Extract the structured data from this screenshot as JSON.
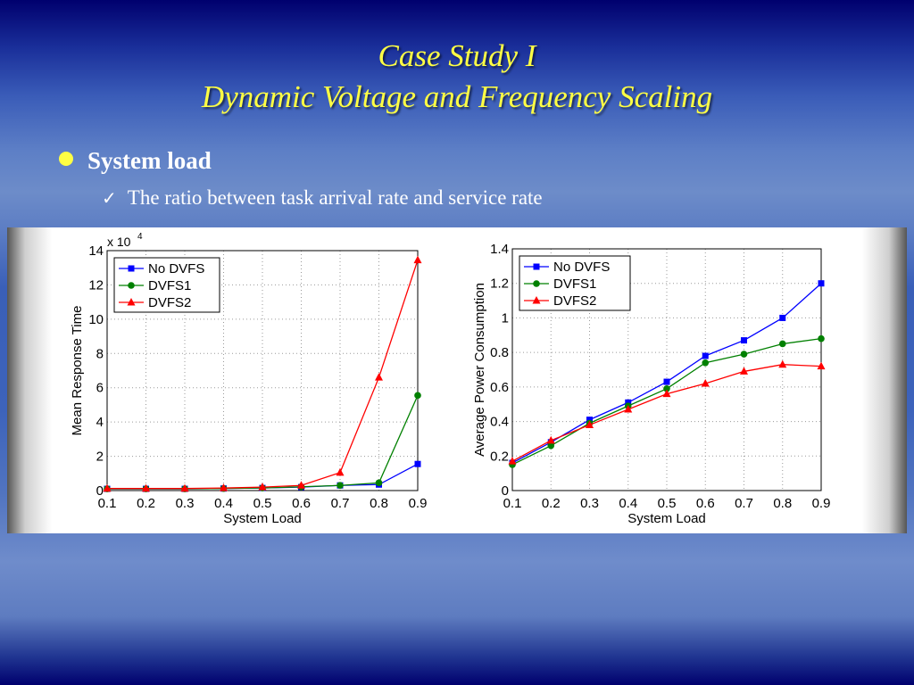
{
  "slide": {
    "title_line1": "Case Study I",
    "title_line2": "Dynamic Voltage and Frequency Scaling",
    "bullet": "System load",
    "subbullet": "The ratio between task arrival rate and service rate"
  },
  "colors": {
    "title": "#ffff44",
    "no_dvfs": "#0000ff",
    "dvfs1": "#008000",
    "dvfs2": "#ff0000"
  },
  "chart_data": [
    {
      "type": "line",
      "xlabel": "System Load",
      "ylabel": "Mean Response Time",
      "y_exponent": "x 10",
      "y_exponent_power": "4",
      "x": [
        0.1,
        0.2,
        0.3,
        0.4,
        0.5,
        0.6,
        0.7,
        0.8,
        0.9
      ],
      "xlim": [
        0.1,
        0.9
      ],
      "ylim": [
        0,
        14
      ],
      "xticks": [
        "0.1",
        "0.2",
        "0.3",
        "0.4",
        "0.5",
        "0.6",
        "0.7",
        "0.8",
        "0.9"
      ],
      "yticks": [
        "0",
        "2",
        "4",
        "6",
        "8",
        "10",
        "12",
        "14"
      ],
      "grid": true,
      "legend": "top-left",
      "series": [
        {
          "name": "No DVFS",
          "color": "#0000ff",
          "marker": "square",
          "values": [
            0.1,
            0.1,
            0.1,
            0.12,
            0.15,
            0.2,
            0.3,
            0.35,
            1.55
          ]
        },
        {
          "name": "DVFS1",
          "color": "#008000",
          "marker": "circle",
          "values": [
            0.1,
            0.1,
            0.1,
            0.12,
            0.15,
            0.22,
            0.3,
            0.45,
            5.55
          ]
        },
        {
          "name": "DVFS2",
          "color": "#ff0000",
          "marker": "triangle",
          "values": [
            0.12,
            0.12,
            0.12,
            0.15,
            0.2,
            0.3,
            1.05,
            6.6,
            13.45
          ]
        }
      ]
    },
    {
      "type": "line",
      "xlabel": "System Load",
      "ylabel": "Average Power Consumption",
      "x": [
        0.1,
        0.2,
        0.3,
        0.4,
        0.5,
        0.6,
        0.7,
        0.8,
        0.9
      ],
      "xlim": [
        0.1,
        0.9
      ],
      "ylim": [
        0,
        1.4
      ],
      "xticks": [
        "0.1",
        "0.2",
        "0.3",
        "0.4",
        "0.5",
        "0.6",
        "0.7",
        "0.8",
        "0.9"
      ],
      "yticks": [
        "0",
        "0.2",
        "0.4",
        "0.6",
        "0.8",
        "1",
        "1.2",
        "1.4"
      ],
      "grid": true,
      "legend": "top-left",
      "series": [
        {
          "name": "No DVFS",
          "color": "#0000ff",
          "marker": "square",
          "values": [
            0.16,
            0.28,
            0.41,
            0.51,
            0.63,
            0.78,
            0.87,
            1.0,
            1.2
          ]
        },
        {
          "name": "DVFS1",
          "color": "#008000",
          "marker": "circle",
          "values": [
            0.15,
            0.26,
            0.39,
            0.49,
            0.59,
            0.74,
            0.79,
            0.85,
            0.88
          ]
        },
        {
          "name": "DVFS2",
          "color": "#ff0000",
          "marker": "triangle",
          "values": [
            0.17,
            0.29,
            0.38,
            0.47,
            0.56,
            0.62,
            0.69,
            0.73,
            0.72
          ]
        }
      ]
    }
  ]
}
